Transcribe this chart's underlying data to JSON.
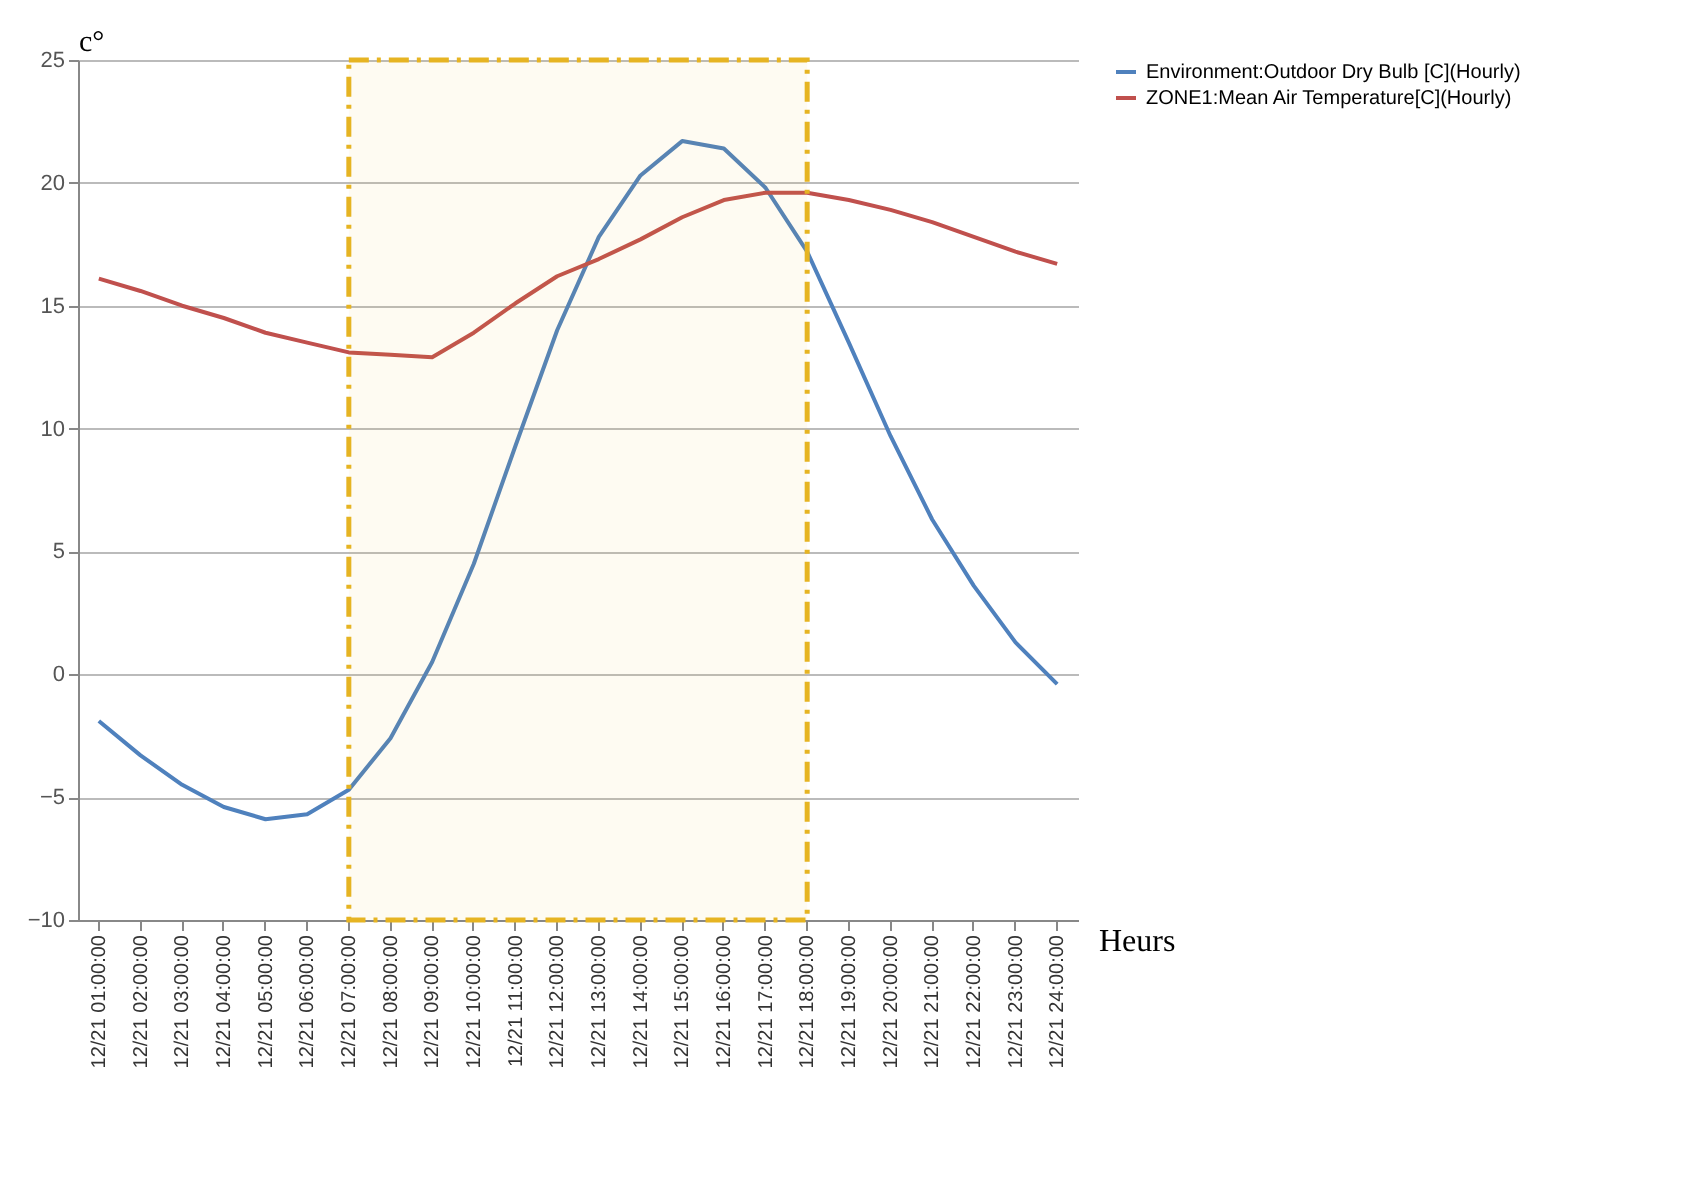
{
  "chart_data": {
    "type": "line",
    "ylabel": "c°",
    "xlabel": "Heurs",
    "categories": [
      "12/21 01:00:00",
      "12/21 02:00:00",
      "12/21 03:00:00",
      "12/21 04:00:00",
      "12/21 05:00:00",
      "12/21 06:00:00",
      "12/21 07:00:00",
      "12/21 08:00:00",
      "12/21 09:00:00",
      "12/21 10:00:00",
      "12/21 11:00:00",
      "12/21 12:00:00",
      "12/21 13:00:00",
      "12/21 14:00:00",
      "12/21 15:00:00",
      "12/21 16:00:00",
      "12/21 17:00:00",
      "12/21 18:00:00",
      "12/21 19:00:00",
      "12/21 20:00:00",
      "12/21 21:00:00",
      "12/21 22:00:00",
      "12/21 23:00:00",
      "12/21 24:00:00"
    ],
    "series": [
      {
        "name": "Environment:Outdoor Dry Bulb [C](Hourly)",
        "color": "#4f81bd",
        "values": [
          -1.9,
          -3.3,
          -4.5,
          -5.4,
          -5.9,
          -5.7,
          -4.7,
          -2.6,
          0.5,
          4.5,
          9.3,
          14,
          17.8,
          20.3,
          21.7,
          21.4,
          19.8,
          17.2,
          13.5,
          9.7,
          6.3,
          3.6,
          1.3,
          -0.4
        ]
      },
      {
        "name": "ZONE1:Mean Air Temperature[C](Hourly)",
        "color": "#c0504d",
        "values": [
          16.1,
          15.6,
          15,
          14.5,
          13.9,
          13.5,
          13.1,
          13,
          12.9,
          13.9,
          15.1,
          16.2,
          16.9,
          17.7,
          18.6,
          19.3,
          19.6,
          19.6,
          19.3,
          18.9,
          18.4,
          17.8,
          17.2,
          16.7
        ]
      }
    ],
    "ylim": [
      -10,
      25
    ],
    "yticks": [
      -10,
      -5,
      0,
      5,
      10,
      15,
      20,
      25
    ],
    "grid": "y",
    "legend": "right",
    "marker": "none",
    "line_style": "solid",
    "bands": [
      {
        "axis": "x",
        "from": "12/21 07:00:00",
        "to": "12/21 18:00:00",
        "color": "#e6b422"
      }
    ]
  }
}
